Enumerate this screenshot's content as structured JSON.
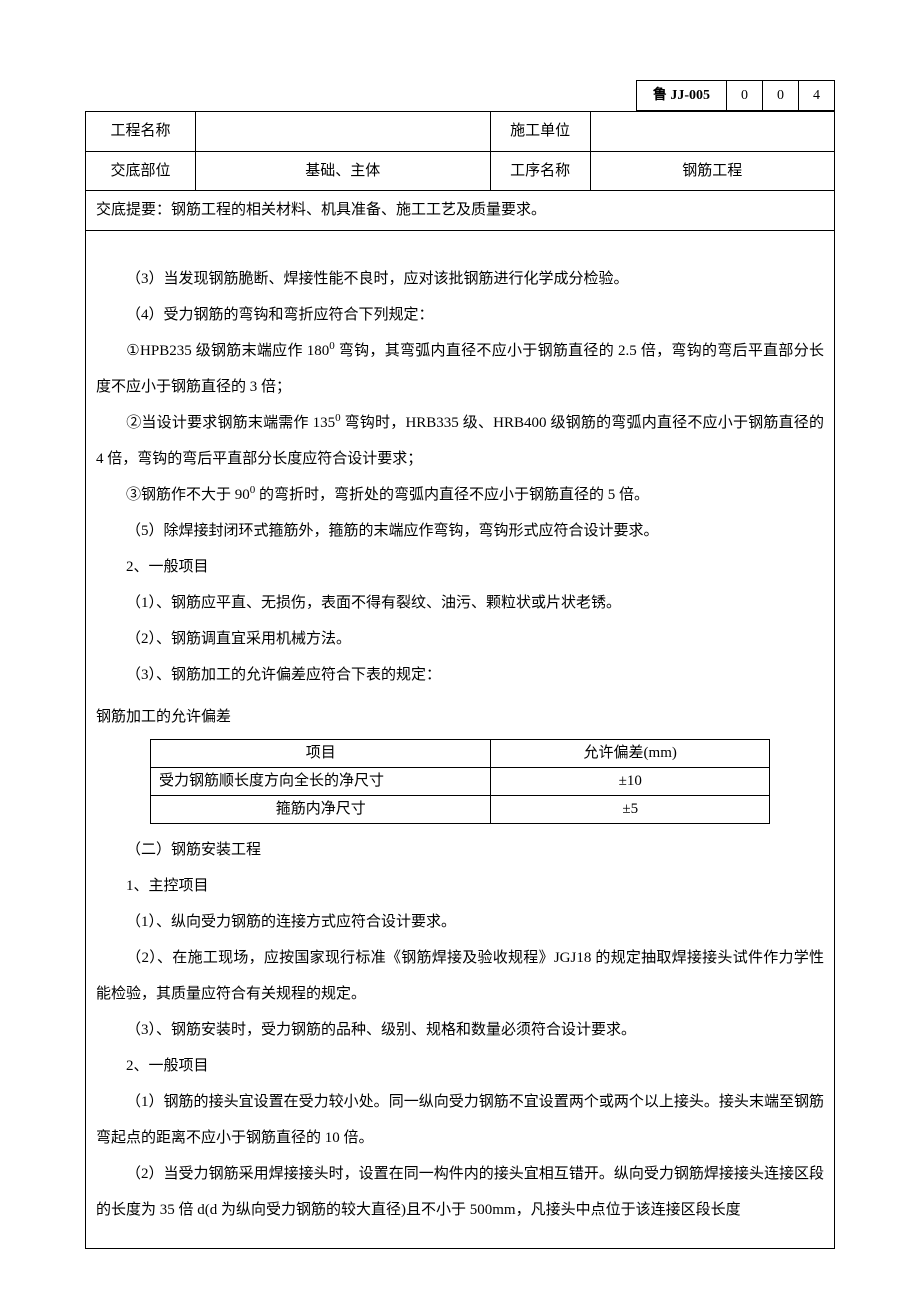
{
  "header": {
    "code_label": "鲁 JJ-005",
    "code_nums": [
      "0",
      "0",
      "4"
    ]
  },
  "info_table": {
    "row1": {
      "label1": "工程名称",
      "value1": "",
      "label2": "施工单位",
      "value2": ""
    },
    "row2": {
      "label1": "交底部位",
      "value1": "基础、主体",
      "label2": "工序名称",
      "value2": "钢筋工程"
    },
    "summary": "交底提要：钢筋工程的相关材料、机具准备、施工工艺及质量要求。"
  },
  "paragraphs": {
    "p1": "（3）当发现钢筋脆断、焊接性能不良时，应对该批钢筋进行化学成分检验。",
    "p2": "（4）受力钢筋的弯钩和弯折应符合下列规定：",
    "p3_a": "①HPB235 级钢筋末端应作 180",
    "p3_sup": "0",
    "p3_b": " 弯钩，其弯弧内直径不应小于钢筋直径的 2.5 倍，弯钩的弯后平直部分长度不应小于钢筋直径的 3 倍；",
    "p4_a": "②当设计要求钢筋末端需作 135",
    "p4_sup": "0",
    "p4_b": " 弯钩时，HRB335 级、HRB400 级钢筋的弯弧内直径不应小于钢筋直径的 4 倍，弯钩的弯后平直部分长度应符合设计要求；",
    "p5_a": "③钢筋作不大于 90",
    "p5_sup": "0",
    "p5_b": " 的弯折时，弯折处的弯弧内直径不应小于钢筋直径的 5 倍。",
    "p6": "（5）除焊接封闭环式箍筋外，箍筋的末端应作弯钩，弯钩形式应符合设计要求。",
    "p7": "2、一般项目",
    "p8": "（1）、钢筋应平直、无损伤，表面不得有裂纹、油污、颗粒状或片状老锈。",
    "p9": "（2）、钢筋调直宜采用机械方法。",
    "p10": "（3）、钢筋加工的允许偏差应符合下表的规定：",
    "tolerance_title": "钢筋加工的允许偏差",
    "p11": "（二）钢筋安装工程",
    "p12": "1、主控项目",
    "p13": "（1）、纵向受力钢筋的连接方式应符合设计要求。",
    "p14": "（2）、在施工现场，应按国家现行标准《钢筋焊接及验收规程》JGJ18 的规定抽取焊接接头试件作力学性能检验，其质量应符合有关规程的规定。",
    "p15": "（3）、钢筋安装时，受力钢筋的品种、级别、规格和数量必须符合设计要求。",
    "p16": "2、一般项目",
    "p17": "（1）钢筋的接头宜设置在受力较小处。同一纵向受力钢筋不宜设置两个或两个以上接头。接头末端至钢筋弯起点的距离不应小于钢筋直径的 10 倍。",
    "p18": "（2）当受力钢筋采用焊接接头时，设置在同一构件内的接头宜相互错开。纵向受力钢筋焊接接头连接区段的长度为 35 倍 d(d 为纵向受力钢筋的较大直径)且不小于 500mm，凡接头中点位于该连接区段长度"
  },
  "tolerance_table": {
    "header": {
      "col1": "项目",
      "col2": "允许偏差(mm)"
    },
    "rows": [
      {
        "item": "受力钢筋顺长度方向全长的净尺寸",
        "value": "±10"
      },
      {
        "item": "箍筋内净尺寸",
        "value": "±5"
      }
    ]
  }
}
